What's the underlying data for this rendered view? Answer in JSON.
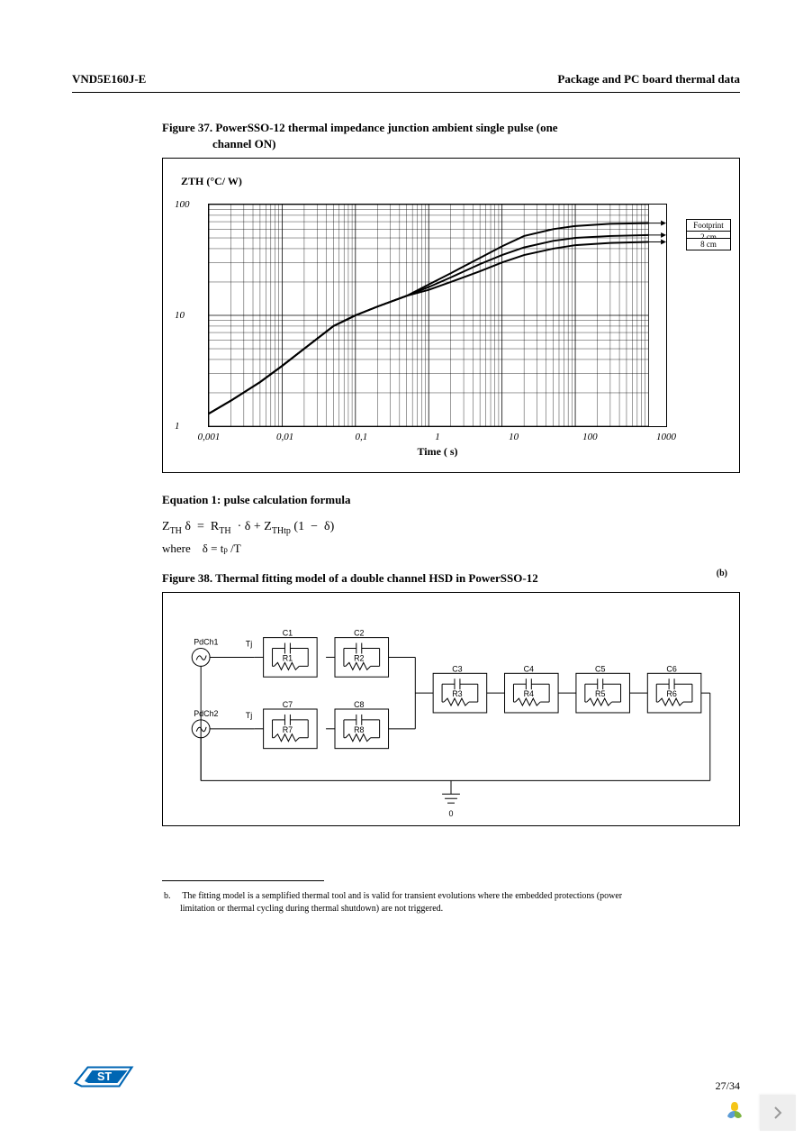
{
  "header": {
    "left": "VND5E160J-E",
    "right": "Package and PC board thermal data"
  },
  "figure37": {
    "caption_line1": "Figure 37. PowerSSO-12 thermal impedance junction ambient single pulse (one",
    "caption_line2": "channel ON)",
    "ylabel": "ZTH (°C/ W)",
    "xlabel": "Time ( s)",
    "type": "line-loglog",
    "xlim": [
      0.001,
      1000
    ],
    "ylim": [
      1,
      100
    ],
    "yticks": [
      1,
      10,
      100
    ],
    "ytick_labels": [
      "1",
      "10",
      "100"
    ],
    "xticks": [
      0.001,
      0.01,
      0.1,
      1,
      10,
      100,
      1000
    ],
    "xtick_labels": [
      "0,001",
      "0,01",
      "0,1",
      "1",
      "10",
      "100",
      "1000"
    ],
    "series_colors": [
      "#000000",
      "#000000",
      "#000000"
    ],
    "line_width": 2,
    "grid_color": "#000000",
    "background_color": "#ffffff",
    "legend": [
      "Footprint",
      "2 cm",
      "8 cm"
    ],
    "series": {
      "footprint": [
        [
          0.001,
          1.3
        ],
        [
          0.002,
          1.7
        ],
        [
          0.005,
          2.5
        ],
        [
          0.01,
          3.5
        ],
        [
          0.02,
          5.0
        ],
        [
          0.05,
          8.0
        ],
        [
          0.1,
          10
        ],
        [
          0.2,
          12
        ],
        [
          0.5,
          15
        ],
        [
          1,
          19
        ],
        [
          2,
          24
        ],
        [
          5,
          33
        ],
        [
          10,
          42
        ],
        [
          20,
          52
        ],
        [
          50,
          60
        ],
        [
          100,
          64
        ],
        [
          300,
          67
        ],
        [
          1000,
          68
        ]
      ],
      "2cm": [
        [
          0.001,
          1.3
        ],
        [
          0.002,
          1.7
        ],
        [
          0.005,
          2.5
        ],
        [
          0.01,
          3.5
        ],
        [
          0.02,
          5.0
        ],
        [
          0.05,
          8.0
        ],
        [
          0.1,
          10
        ],
        [
          0.2,
          12
        ],
        [
          0.5,
          15
        ],
        [
          1,
          18
        ],
        [
          2,
          22
        ],
        [
          5,
          29
        ],
        [
          10,
          35
        ],
        [
          20,
          41
        ],
        [
          50,
          47
        ],
        [
          100,
          50
        ],
        [
          300,
          52
        ],
        [
          1000,
          53
        ]
      ],
      "8cm": [
        [
          0.001,
          1.3
        ],
        [
          0.002,
          1.7
        ],
        [
          0.005,
          2.5
        ],
        [
          0.01,
          3.5
        ],
        [
          0.02,
          5.0
        ],
        [
          0.05,
          8.0
        ],
        [
          0.1,
          10
        ],
        [
          0.2,
          12
        ],
        [
          0.5,
          15
        ],
        [
          1,
          17
        ],
        [
          2,
          20
        ],
        [
          5,
          25
        ],
        [
          10,
          30
        ],
        [
          20,
          35
        ],
        [
          50,
          40
        ],
        [
          100,
          43
        ],
        [
          300,
          45
        ],
        [
          1000,
          46
        ]
      ]
    }
  },
  "equation1": {
    "title": "Equation 1: pulse calculation formula",
    "formula": "Z_TH δ = R_TH · δ + Z_THtp (1 − δ)",
    "where_label": "where",
    "where_expr": "δ = t_p / T"
  },
  "figure38": {
    "caption": "Figure 38. Thermal fitting model of a double channel HSD in PowerSSO-12",
    "footnote_mark": "(b)",
    "type": "circuit-diagram",
    "background_color": "#ffffff",
    "stroke_color": "#000000",
    "sources": [
      "PdCh1",
      "PdCh2"
    ],
    "tj_labels": [
      "Tj",
      "Tj"
    ],
    "rc_pairs_row1": [
      {
        "c": "C1",
        "r": "R1"
      },
      {
        "c": "C2",
        "r": "R2"
      }
    ],
    "rc_pairs_row2": [
      {
        "c": "C7",
        "r": "R7"
      },
      {
        "c": "C8",
        "r": "R8"
      }
    ],
    "rc_pairs_shared": [
      {
        "c": "C3",
        "r": "R3"
      },
      {
        "c": "C4",
        "r": "R4"
      },
      {
        "c": "C5",
        "r": "R5"
      },
      {
        "c": "C6",
        "r": "R6"
      }
    ],
    "ground_label": "0"
  },
  "footnote": {
    "mark": "b.",
    "text": "The fitting model is a semplified thermal tool and is valid for transient evolutions where the embedded protections (power limitation or thermal cycling during thermal shutdown) are not triggered."
  },
  "footer": {
    "page": "27/34"
  },
  "colors": {
    "logo_blue": "#0066b3",
    "nav_bg": "#eeeeee"
  }
}
